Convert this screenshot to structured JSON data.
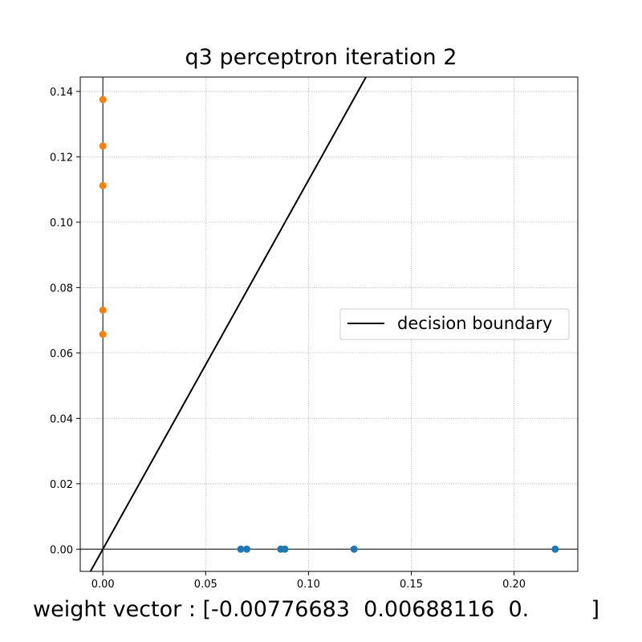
{
  "chart_data": {
    "type": "scatter",
    "title": "q3 perceptron iteration 2",
    "xlabel": "",
    "ylabel": "",
    "xlim": [
      -0.011,
      0.231
    ],
    "ylim": [
      -0.0068,
      0.1444
    ],
    "x_ticks": [
      0.0,
      0.05,
      0.1,
      0.15,
      0.2
    ],
    "x_tick_labels": [
      "0.00",
      "0.05",
      "0.10",
      "0.15",
      "0.20"
    ],
    "y_ticks": [
      0.0,
      0.02,
      0.04,
      0.06,
      0.08,
      0.1,
      0.12,
      0.14
    ],
    "y_tick_labels": [
      "0.00",
      "0.02",
      "0.04",
      "0.06",
      "0.08",
      "0.10",
      "0.12",
      "0.14"
    ],
    "grid": true,
    "series": [
      {
        "color": "#1f77b4",
        "points": [
          [
            0.0671,
            0.0
          ],
          [
            0.07,
            0.0
          ],
          [
            0.0865,
            0.0
          ],
          [
            0.0885,
            0.0
          ],
          [
            0.1222,
            0.0
          ],
          [
            0.22,
            0.0
          ]
        ]
      },
      {
        "color": "#ff7f0e",
        "points": [
          [
            0.0,
            0.1375
          ],
          [
            0.0,
            0.1233
          ],
          [
            0.0,
            0.1112
          ],
          [
            0.0,
            0.0731
          ],
          [
            0.0,
            0.0657
          ]
        ]
      }
    ],
    "lines": [
      {
        "name": "decision boundary",
        "color": "#000000",
        "slope": 1.1284
      }
    ],
    "reference_lines": {
      "x_zero": true,
      "y_zero": true,
      "color": "#000000"
    },
    "legend": {
      "position": "center-right",
      "entries": [
        "decision boundary"
      ]
    }
  },
  "footer_text": "weight vector : [-0.00776683  0.00688116  0.         ]"
}
